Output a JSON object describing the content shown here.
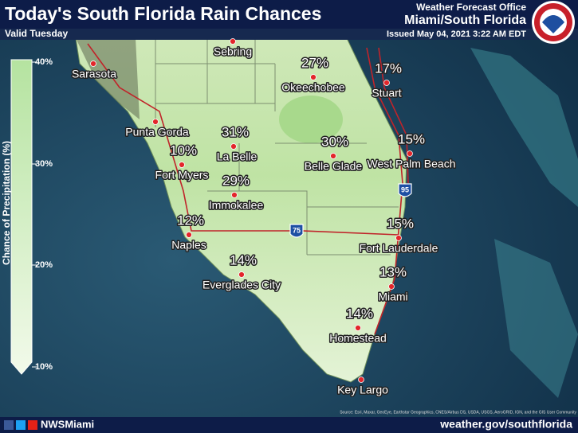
{
  "header": {
    "title": "Today's South Florida Rain Chances",
    "subtitle": "Valid Tuesday",
    "office": "Weather Forecast Office",
    "office_name": "Miami/South Florida",
    "issued": "Issued May 04, 2021 3:22 AM EDT"
  },
  "legend": {
    "label": "Chance of Precipitation (%)",
    "ticks": [
      "40%",
      "30%",
      "20%",
      "10%"
    ]
  },
  "cities": [
    {
      "name": "Sarasota"
    },
    {
      "name": "Sebring"
    },
    {
      "name": "Okeechobee",
      "value": "27%"
    },
    {
      "name": "Stuart",
      "value": "17%"
    },
    {
      "name": "Punta Gorda"
    },
    {
      "name": "La Belle",
      "value": "31%"
    },
    {
      "name": "Belle Glade",
      "value": "30%"
    },
    {
      "name": "West Palm Beach",
      "value": "15%"
    },
    {
      "name": "Fort Myers",
      "value": "10%"
    },
    {
      "name": "Immokalee",
      "value": "29%"
    },
    {
      "name": "Naples",
      "value": "12%"
    },
    {
      "name": "Fort Lauderdale",
      "value": "15%"
    },
    {
      "name": "Everglades City",
      "value": "14%"
    },
    {
      "name": "Miami",
      "value": "13%"
    },
    {
      "name": "Homestead",
      "value": "14%"
    },
    {
      "name": "Key Largo"
    }
  ],
  "highways": [
    "95",
    "75"
  ],
  "footer": {
    "handle": "NWSMiami",
    "url": "weather.gov/southflorida",
    "source": "Source: Esri, Maxar, GeoEye, Earthstar Geographics, CNES/Airbus DS, USDA, USGS, AeroGRID, IGN, and the GIS User Community"
  }
}
